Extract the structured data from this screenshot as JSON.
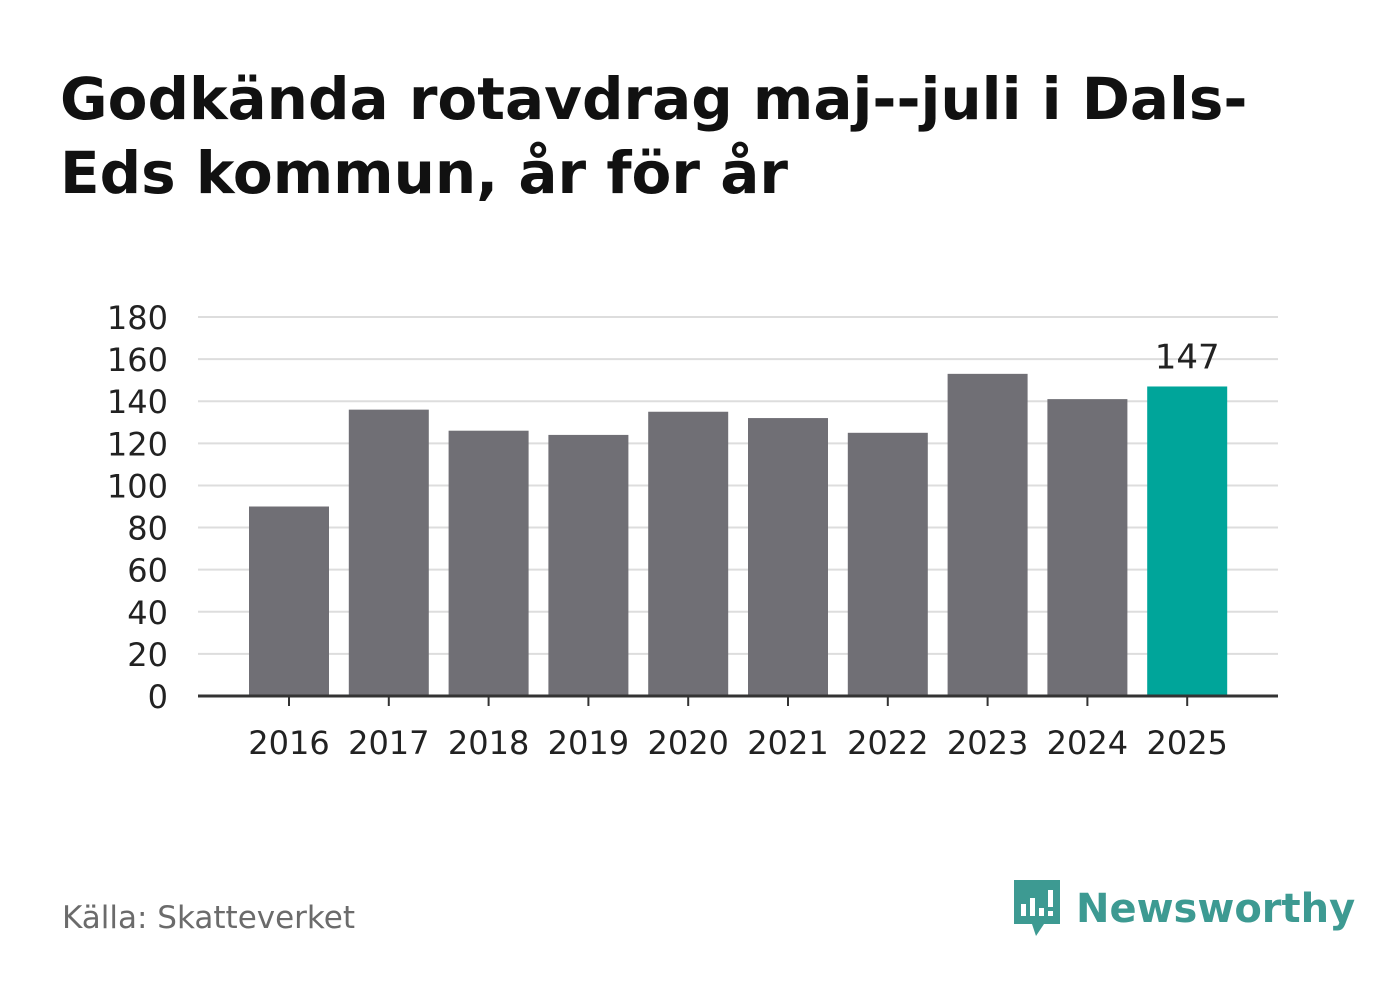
{
  "chart_data": {
    "type": "bar",
    "title": "Godkända rotavdrag maj--juli i Dals-Eds kommun, år för år",
    "xlabel": "",
    "ylabel": "",
    "categories": [
      "2016",
      "2017",
      "2018",
      "2019",
      "2020",
      "2021",
      "2022",
      "2023",
      "2024",
      "2025"
    ],
    "values": [
      90,
      136,
      126,
      124,
      135,
      132,
      125,
      153,
      141,
      147
    ],
    "ylim": [
      0,
      180
    ],
    "yticks": [
      0,
      20,
      40,
      60,
      80,
      100,
      120,
      140,
      160,
      180
    ],
    "data_labels": {
      "9": "147"
    },
    "grid": true,
    "legend": "none",
    "colors": {
      "default": "#706f75",
      "highlight": "#00a59a",
      "grid": "#dddddd",
      "axis": "#333333"
    }
  },
  "footer": {
    "source": "Källa: Skatteverket",
    "brand": "Newsworthy",
    "brand_icon": "newsworthy-logo-icon"
  }
}
